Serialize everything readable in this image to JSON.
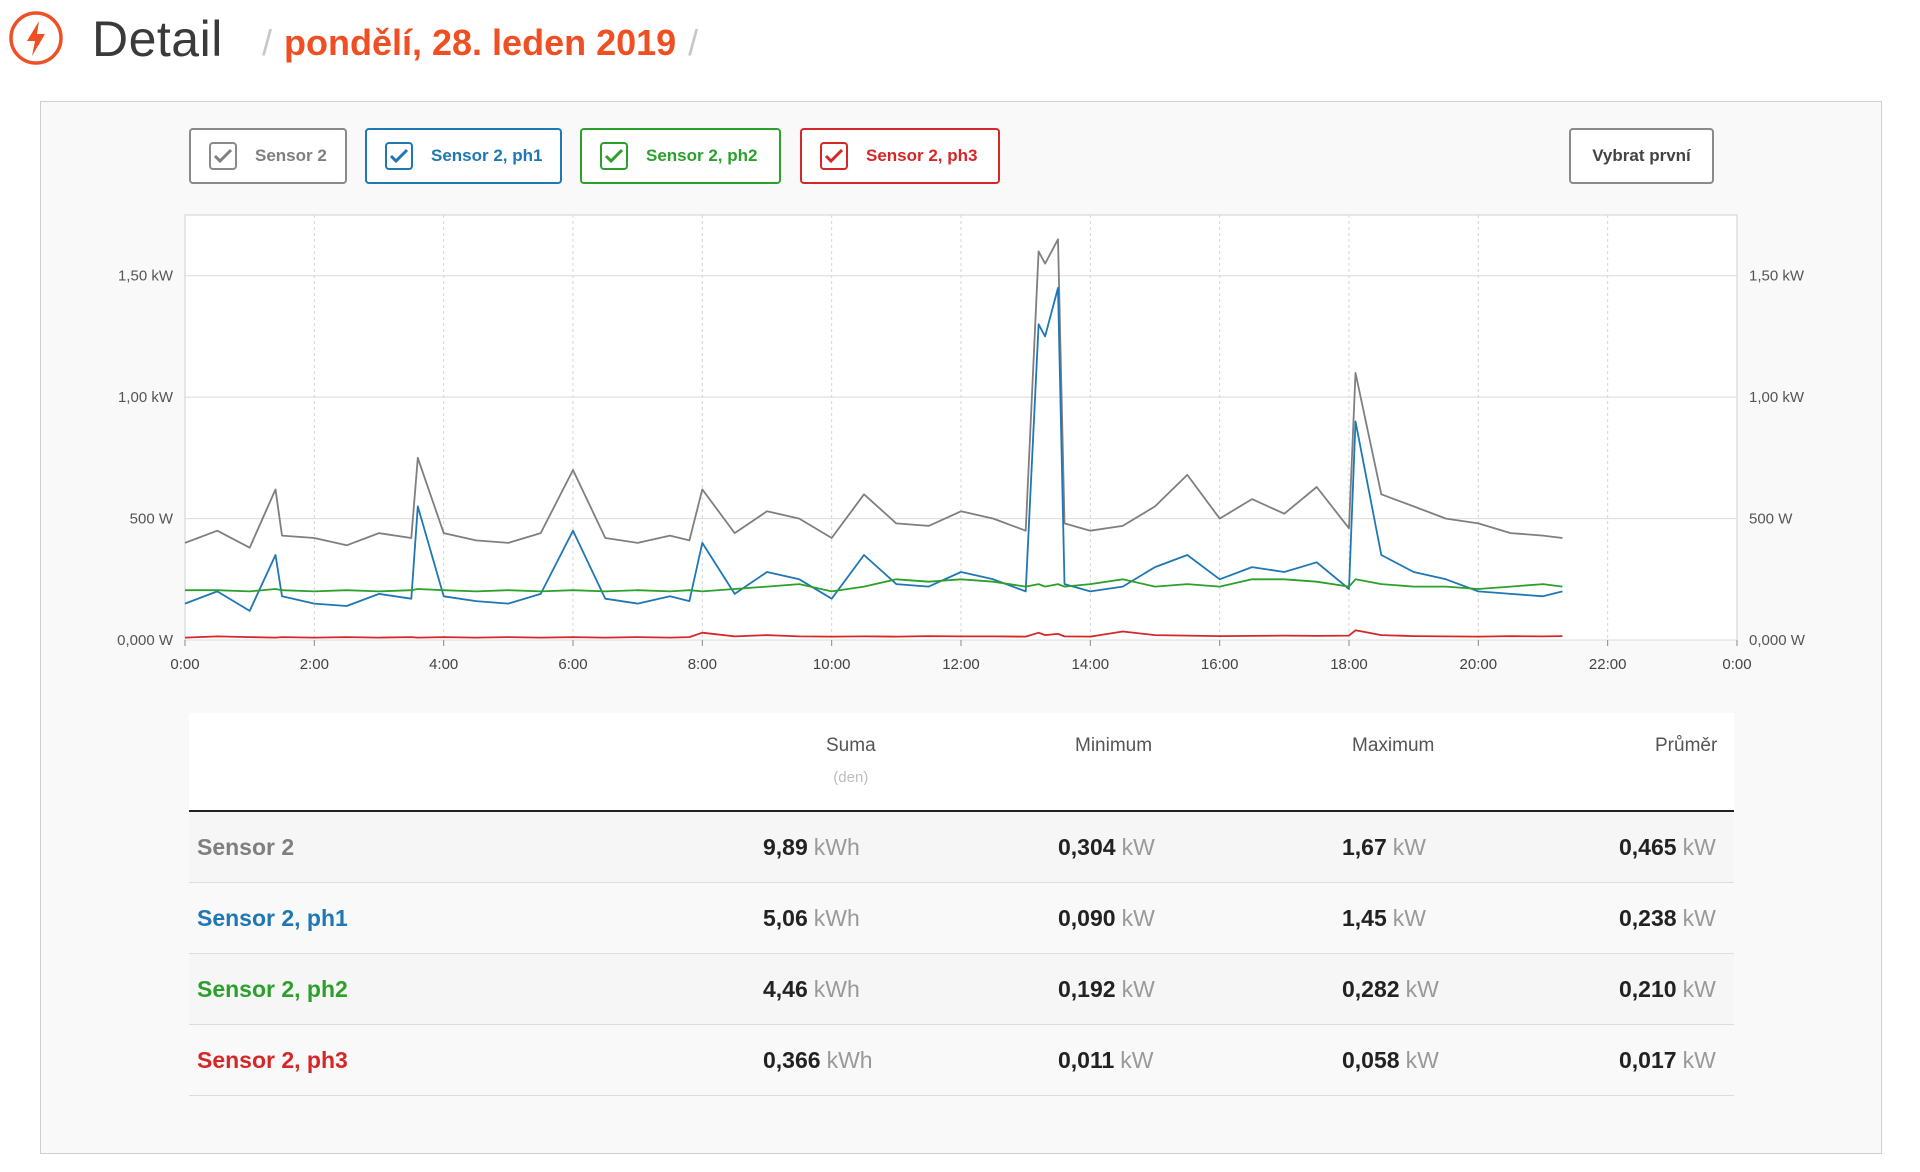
{
  "header": {
    "title": "Detail",
    "sep": "/",
    "date": "pondělí, 28. leden 2019"
  },
  "colors": {
    "accent": "#f04e23",
    "sensor": "#7f7f7f",
    "ph1": "#1f77b4",
    "ph2": "#2ca02c",
    "ph3": "#d62728"
  },
  "toolbar": {
    "buttons": [
      {
        "label": "Sensor 2",
        "checked": true
      },
      {
        "label": "Sensor 2, ph1",
        "checked": true
      },
      {
        "label": "Sensor 2, ph2",
        "checked": true
      },
      {
        "label": "Sensor 2, ph3",
        "checked": true
      }
    ],
    "select_first": "Vybrat první"
  },
  "chart_data": {
    "type": "line",
    "x_unit": "time of day",
    "x_ticks": [
      "0:00",
      "2:00",
      "4:00",
      "6:00",
      "8:00",
      "10:00",
      "12:00",
      "14:00",
      "16:00",
      "18:00",
      "20:00",
      "22:00",
      "0:00"
    ],
    "y_ticks": [
      "0,000 W",
      "500 W",
      "1,00 kW",
      "1,50 kW"
    ],
    "ylim": [
      0,
      1.75
    ],
    "grid": true,
    "x": [
      0,
      0.5,
      1,
      1.4,
      1.5,
      2,
      2.5,
      3,
      3.5,
      3.6,
      4,
      4.5,
      5,
      5.5,
      6,
      6.5,
      7,
      7.5,
      7.8,
      8,
      8.5,
      9,
      9.5,
      10,
      10.5,
      11,
      11.5,
      12,
      12.5,
      13,
      13.2,
      13.3,
      13.5,
      13.6,
      14,
      14.5,
      15,
      15.5,
      16,
      16.5,
      17,
      17.5,
      18,
      18.1,
      18.5,
      19,
      19.5,
      20,
      20.5,
      21,
      21.3
    ],
    "series": [
      {
        "name": "Sensor 2",
        "values": [
          0.4,
          0.45,
          0.38,
          0.62,
          0.43,
          0.42,
          0.39,
          0.44,
          0.42,
          0.75,
          0.44,
          0.41,
          0.4,
          0.44,
          0.7,
          0.42,
          0.4,
          0.43,
          0.41,
          0.62,
          0.44,
          0.53,
          0.5,
          0.42,
          0.6,
          0.48,
          0.47,
          0.53,
          0.5,
          0.45,
          1.6,
          1.55,
          1.65,
          0.48,
          0.45,
          0.47,
          0.55,
          0.68,
          0.5,
          0.58,
          0.52,
          0.63,
          0.46,
          1.1,
          0.6,
          0.55,
          0.5,
          0.48,
          0.44,
          0.43,
          0.42
        ]
      },
      {
        "name": "Sensor 2, ph1",
        "values": [
          0.15,
          0.2,
          0.12,
          0.35,
          0.18,
          0.15,
          0.14,
          0.19,
          0.17,
          0.55,
          0.18,
          0.16,
          0.15,
          0.19,
          0.45,
          0.17,
          0.15,
          0.18,
          0.16,
          0.4,
          0.19,
          0.28,
          0.25,
          0.17,
          0.35,
          0.23,
          0.22,
          0.28,
          0.25,
          0.2,
          1.3,
          1.25,
          1.45,
          0.23,
          0.2,
          0.22,
          0.3,
          0.35,
          0.25,
          0.3,
          0.28,
          0.32,
          0.21,
          0.9,
          0.35,
          0.28,
          0.25,
          0.2,
          0.19,
          0.18,
          0.2
        ]
      },
      {
        "name": "Sensor 2, ph2",
        "values": [
          0.205,
          0.205,
          0.2,
          0.21,
          0.205,
          0.2,
          0.205,
          0.2,
          0.205,
          0.21,
          0.205,
          0.2,
          0.205,
          0.2,
          0.205,
          0.2,
          0.205,
          0.2,
          0.205,
          0.2,
          0.21,
          0.22,
          0.23,
          0.2,
          0.22,
          0.25,
          0.24,
          0.25,
          0.24,
          0.22,
          0.23,
          0.22,
          0.23,
          0.22,
          0.23,
          0.25,
          0.22,
          0.23,
          0.22,
          0.25,
          0.25,
          0.24,
          0.22,
          0.25,
          0.23,
          0.22,
          0.22,
          0.21,
          0.22,
          0.23,
          0.22
        ]
      },
      {
        "name": "Sensor 2, ph3",
        "values": [
          0.01,
          0.015,
          0.012,
          0.01,
          0.012,
          0.01,
          0.012,
          0.01,
          0.012,
          0.01,
          0.012,
          0.01,
          0.012,
          0.01,
          0.012,
          0.01,
          0.012,
          0.01,
          0.012,
          0.03,
          0.015,
          0.02,
          0.015,
          0.014,
          0.015,
          0.014,
          0.016,
          0.015,
          0.015,
          0.014,
          0.03,
          0.02,
          0.025,
          0.015,
          0.014,
          0.035,
          0.02,
          0.018,
          0.016,
          0.017,
          0.018,
          0.017,
          0.018,
          0.04,
          0.02,
          0.016,
          0.015,
          0.014,
          0.016,
          0.015,
          0.016
        ]
      }
    ]
  },
  "table": {
    "columns": [
      {
        "label": "Suma",
        "sub": "(den)"
      },
      {
        "label": "Minimum",
        "sub": ""
      },
      {
        "label": "Maximum",
        "sub": ""
      },
      {
        "label": "Průměr",
        "sub": ""
      }
    ],
    "rows": [
      {
        "name": "Sensor 2",
        "suma": "9,89",
        "suma_unit": "kWh",
        "min": "0,304",
        "min_unit": "kW",
        "max": "1,67",
        "max_unit": "kW",
        "avg": "0,465",
        "avg_unit": "kW"
      },
      {
        "name": "Sensor 2, ph1",
        "suma": "5,06",
        "suma_unit": "kWh",
        "min": "0,090",
        "min_unit": "kW",
        "max": "1,45",
        "max_unit": "kW",
        "avg": "0,238",
        "avg_unit": "kW"
      },
      {
        "name": "Sensor 2, ph2",
        "suma": "4,46",
        "suma_unit": "kWh",
        "min": "0,192",
        "min_unit": "kW",
        "max": "0,282",
        "max_unit": "kW",
        "avg": "0,210",
        "avg_unit": "kW"
      },
      {
        "name": "Sensor 2, ph3",
        "suma": "0,366",
        "suma_unit": "kWh",
        "min": "0,011",
        "min_unit": "kW",
        "max": "0,058",
        "max_unit": "kW",
        "avg": "0,017",
        "avg_unit": "kW"
      }
    ]
  }
}
